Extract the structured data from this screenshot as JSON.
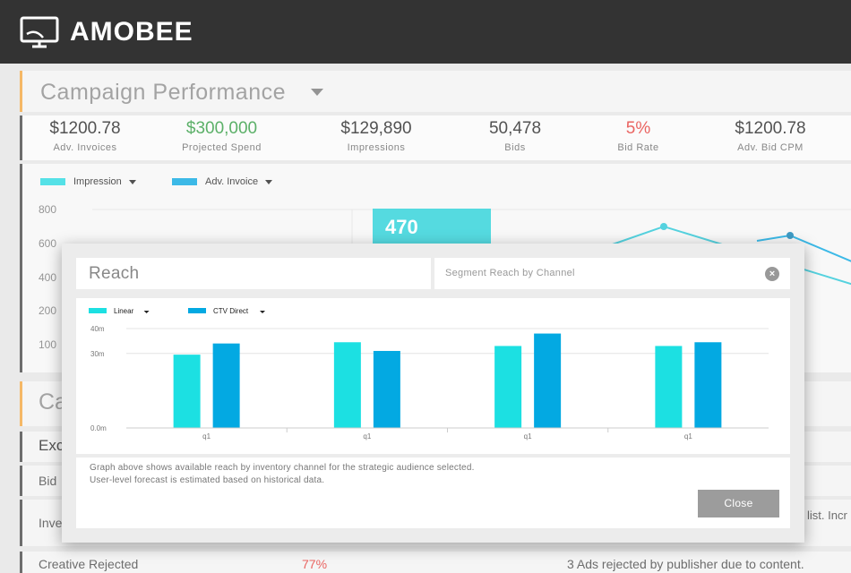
{
  "brand": {
    "name": "AMOBEE",
    "icon": "monitor-logo-icon"
  },
  "campaign": {
    "title": "Campaign Performance",
    "kpis": [
      {
        "value": "$1200.78",
        "label": "Adv. Invoices",
        "color": "#222222"
      },
      {
        "value": "$300,000",
        "label": "Projected Spend",
        "color": "#2e9a3e"
      },
      {
        "value": "$129,890",
        "label": "Impressions",
        "color": "#222222"
      },
      {
        "value": "50,478",
        "label": "Bids",
        "color": "#222222"
      },
      {
        "value": "5%",
        "label": "Bid Rate",
        "color": "#e53935"
      },
      {
        "value": "$1200.78",
        "label": "Adv. Bid CPM",
        "color": "#222222"
      }
    ],
    "chart": {
      "legend": [
        {
          "label": "Impression",
          "color": "#26d9e0"
        },
        {
          "label": "Adv. Invoice",
          "color": "#06a6e0"
        }
      ],
      "yticks": [
        "800",
        "600",
        "400",
        "200",
        "100"
      ],
      "highlight_value": "470"
    },
    "lower": {
      "section_title_partial": "Ca",
      "row1": "Exc",
      "row2": "Bid",
      "row3": "Inve",
      "row3_right": "list. Incr",
      "row4_label": "Creative Rejected",
      "row4_value": "77%",
      "row4_note": "3 Ads rejected by publisher due to content."
    }
  },
  "modal": {
    "title": "Reach",
    "segment_placeholder": "Segment Reach by Channel",
    "close_icon": "close-circle-icon",
    "description_line1": "Graph above shows available reach by inventory channel for the strategic audience selected.",
    "description_line2": "User-level forecast is estimated based on historical data.",
    "close_label": "Close"
  },
  "chart_data": {
    "type": "bar",
    "categories": [
      "q1",
      "q1",
      "q1",
      "q1"
    ],
    "series": [
      {
        "name": "Linear",
        "color": "#1ce0e2",
        "values": [
          29.5,
          34.5,
          33,
          33
        ]
      },
      {
        "name": "CTV Direct",
        "color": "#03a9e2",
        "values": [
          34,
          31,
          38,
          34.5
        ]
      }
    ],
    "yticks": [
      "40m",
      "30m",
      "0.0m"
    ],
    "ylim": [
      0,
      40
    ],
    "xlabel": "",
    "ylabel": "",
    "grid": true,
    "legend_position": "top-left"
  }
}
